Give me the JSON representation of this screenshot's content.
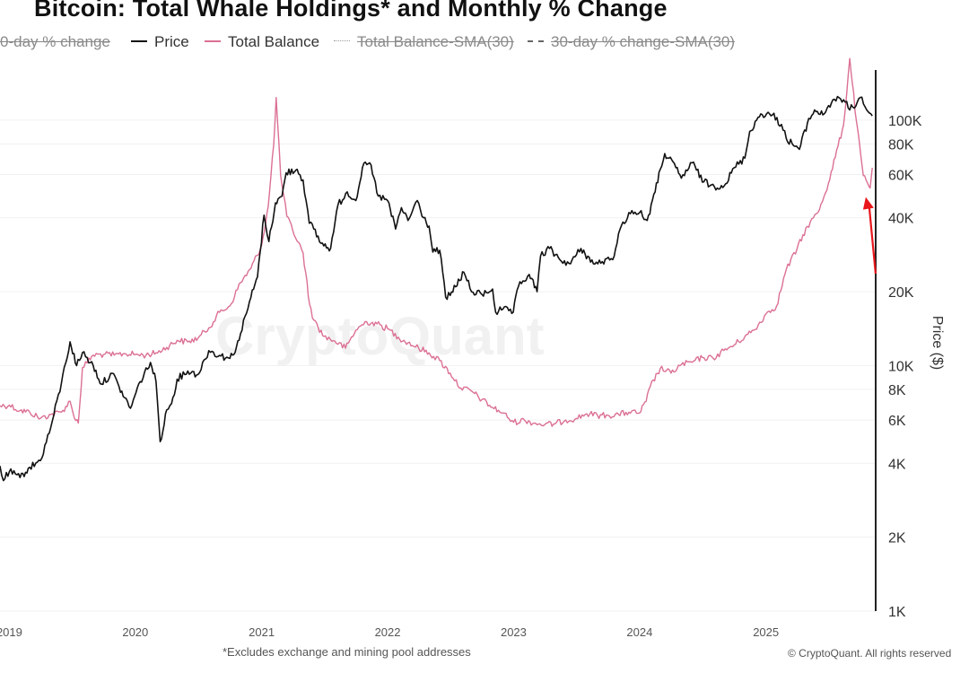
{
  "title": "Bitcoin: Total Whale Holdings* and Monthly % Change",
  "legend": [
    {
      "label": "0-day % change",
      "style": "none",
      "color": "#999999",
      "hidden": true
    },
    {
      "label": "Price",
      "style": "solid",
      "color": "#111111",
      "hidden": false
    },
    {
      "label": "Total Balance",
      "style": "solid",
      "color": "#db7093",
      "hidden": false
    },
    {
      "label": "Total Balance-SMA(30)",
      "style": "dotted",
      "color": "#999999",
      "hidden": true
    },
    {
      "label": "30-day % change-SMA(30)",
      "style": "dashed",
      "color": "#999999",
      "hidden": true
    }
  ],
  "watermark": "CryptoQuant",
  "footnote": "*Excludes exchange and mining pool addresses",
  "copyright": "© CryptoQuant. All rights reserved",
  "colors": {
    "price": "#111111",
    "total_balance": "#db7093",
    "arrow": "#e8161b",
    "axis": "#222222"
  },
  "chart_data": {
    "type": "line",
    "title": "Bitcoin: Total Whale Holdings* and Monthly % Change",
    "x_ticks": [
      "2019",
      "2020",
      "2021",
      "2022",
      "2023",
      "2024",
      "2025"
    ],
    "xlim": [
      "2018-12-05",
      "2025-11-15"
    ],
    "y_right": {
      "label": "Price ($)",
      "scale": "log",
      "ylim": [
        1000,
        160000
      ],
      "ticks": [
        1000,
        2000,
        4000,
        6000,
        8000,
        10000,
        20000,
        40000,
        60000,
        80000,
        100000
      ],
      "tick_labels": [
        "1K",
        "2K",
        "4K",
        "6K",
        "8K",
        "10K",
        "20K",
        "40K",
        "60K",
        "80K",
        "100K"
      ]
    },
    "series": [
      {
        "name": "Price",
        "axis": "right",
        "x": [
          "2018-12-05",
          "2018-12-15",
          "2019-01-01",
          "2019-02-01",
          "2019-03-01",
          "2019-04-01",
          "2019-05-01",
          "2019-06-01",
          "2019-06-26",
          "2019-07-15",
          "2019-08-01",
          "2019-09-01",
          "2019-09-25",
          "2019-10-26",
          "2019-11-15",
          "2019-12-01",
          "2019-12-18",
          "2020-01-15",
          "2020-02-14",
          "2020-03-01",
          "2020-03-13",
          "2020-04-01",
          "2020-04-15",
          "2020-05-01",
          "2020-06-01",
          "2020-07-01",
          "2020-08-01",
          "2020-09-01",
          "2020-10-01",
          "2020-10-20",
          "2020-11-01",
          "2020-12-01",
          "2020-12-20",
          "2021-01-08",
          "2021-01-22",
          "2021-02-10",
          "2021-03-01",
          "2021-03-13",
          "2021-04-14",
          "2021-05-01",
          "2021-05-19",
          "2021-06-01",
          "2021-06-22",
          "2021-07-20",
          "2021-08-10",
          "2021-09-06",
          "2021-10-01",
          "2021-10-20",
          "2021-11-10",
          "2021-12-05",
          "2022-01-01",
          "2022-01-24",
          "2022-02-10",
          "2022-03-01",
          "2022-03-28",
          "2022-04-15",
          "2022-05-01",
          "2022-05-12",
          "2022-06-01",
          "2022-06-18",
          "2022-07-01",
          "2022-08-10",
          "2022-09-01",
          "2022-10-01",
          "2022-11-01",
          "2022-11-10",
          "2022-12-01",
          "2022-12-31",
          "2023-01-15",
          "2023-02-15",
          "2023-03-10",
          "2023-03-20",
          "2023-04-15",
          "2023-05-15",
          "2023-06-15",
          "2023-07-15",
          "2023-08-20",
          "2023-09-15",
          "2023-10-15",
          "2023-11-01",
          "2023-12-01",
          "2024-01-01",
          "2024-01-23",
          "2024-02-15",
          "2024-03-01",
          "2024-03-14",
          "2024-04-15",
          "2024-05-01",
          "2024-06-01",
          "2024-07-05",
          "2024-08-05",
          "2024-09-06",
          "2024-10-01",
          "2024-11-01",
          "2024-11-15",
          "2024-12-17",
          "2025-01-20",
          "2025-02-15",
          "2025-03-01",
          "2025-04-08",
          "2025-05-01",
          "2025-05-22",
          "2025-06-15",
          "2025-07-14",
          "2025-08-14",
          "2025-09-01",
          "2025-10-06",
          "2025-10-20",
          "2025-11-05"
        ],
        "y": [
          3900,
          3400,
          3700,
          3500,
          3850,
          4100,
          5600,
          8500,
          12500,
          10000,
          11300,
          10000,
          8400,
          9300,
          8200,
          7400,
          6700,
          8600,
          10300,
          8600,
          4900,
          6600,
          7000,
          8800,
          9500,
          9200,
          11500,
          11000,
          10700,
          11900,
          13500,
          19000,
          23000,
          41000,
          32000,
          46000,
          49000,
          61000,
          63000,
          57000,
          38000,
          36000,
          31500,
          30000,
          45000,
          51000,
          47000,
          64000,
          67000,
          49000,
          47000,
          36000,
          44000,
          39000,
          47000,
          40000,
          37000,
          29000,
          29500,
          19000,
          19300,
          24000,
          20000,
          19500,
          20500,
          16500,
          17000,
          16500,
          21000,
          23500,
          20000,
          28000,
          30000,
          27000,
          26000,
          30000,
          26000,
          26500,
          27000,
          34500,
          42000,
          42000,
          39000,
          51000,
          63000,
          73000,
          64000,
          58000,
          67000,
          56000,
          53500,
          55000,
          64000,
          70000,
          90000,
          106000,
          105000,
          96000,
          84000,
          76000,
          97000,
          110000,
          105000,
          121000,
          121000,
          110000,
          124000,
          110000,
          104000
        ]
      },
      {
        "name": "Total Balance",
        "axis": "left",
        "unit": "relative (no left-axis labels shown)",
        "x": [
          "2018-12-05",
          "2019-01-01",
          "2019-02-01",
          "2019-03-01",
          "2019-04-01",
          "2019-05-01",
          "2019-06-01",
          "2019-06-26",
          "2019-07-05",
          "2019-07-20",
          "2019-08-01",
          "2019-09-01",
          "2019-10-01",
          "2019-11-01",
          "2019-12-01",
          "2020-01-01",
          "2020-02-01",
          "2020-03-01",
          "2020-04-01",
          "2020-05-01",
          "2020-06-01",
          "2020-07-01",
          "2020-08-01",
          "2020-09-01",
          "2020-10-01",
          "2020-11-01",
          "2020-12-01",
          "2021-01-01",
          "2021-01-20",
          "2021-02-05",
          "2021-02-12",
          "2021-02-25",
          "2021-03-15",
          "2021-04-01",
          "2021-05-01",
          "2021-05-20",
          "2021-06-01",
          "2021-07-01",
          "2021-08-01",
          "2021-09-01",
          "2021-10-01",
          "2021-11-01",
          "2021-12-01",
          "2022-01-01",
          "2022-02-01",
          "2022-03-01",
          "2022-04-01",
          "2022-05-01",
          "2022-06-01",
          "2022-07-01",
          "2022-08-01",
          "2022-09-01",
          "2022-10-01",
          "2022-11-01",
          "2022-12-01",
          "2023-01-01",
          "2023-02-01",
          "2023-03-01",
          "2023-04-01",
          "2023-05-01",
          "2023-06-01",
          "2023-07-01",
          "2023-08-01",
          "2023-09-01",
          "2023-10-01",
          "2023-11-01",
          "2023-12-01",
          "2024-01-01",
          "2024-01-20",
          "2024-02-01",
          "2024-03-01",
          "2024-04-01",
          "2024-05-01",
          "2024-06-01",
          "2024-07-01",
          "2024-08-01",
          "2024-09-01",
          "2024-10-01",
          "2024-11-01",
          "2024-12-01",
          "2025-01-01",
          "2025-02-01",
          "2025-03-01",
          "2025-04-01",
          "2025-05-01",
          "2025-06-01",
          "2025-07-01",
          "2025-08-14",
          "2025-09-01",
          "2025-09-20",
          "2025-10-10",
          "2025-10-30",
          "2025-11-05"
        ],
        "y": [
          8.0,
          8.1,
          7.4,
          7.2,
          6.4,
          6.9,
          7.2,
          8.6,
          7.0,
          5.8,
          12.9,
          14.5,
          14.6,
          14.5,
          14.7,
          14.6,
          14.5,
          14.8,
          15.5,
          16.4,
          16.2,
          16.7,
          18.0,
          20.0,
          20.8,
          23.8,
          25.6,
          28.6,
          33.5,
          41.5,
          47.5,
          37.5,
          32.3,
          30.5,
          27.6,
          21.0,
          19.0,
          16.9,
          16.3,
          15.4,
          17.7,
          18.8,
          18.5,
          17.9,
          16.8,
          16.1,
          15.4,
          14.8,
          13.8,
          12.2,
          10.3,
          9.9,
          8.8,
          7.8,
          7.1,
          5.9,
          6.2,
          5.8,
          5.6,
          5.7,
          6.2,
          6.4,
          7.0,
          6.8,
          6.8,
          6.9,
          7.2,
          7.1,
          8.6,
          10.5,
          12.8,
          12.2,
          13.3,
          13.6,
          14.2,
          14.1,
          15.1,
          15.8,
          16.9,
          17.8,
          19.8,
          20.8,
          25.5,
          28.1,
          31.0,
          32.8,
          36.5,
          44.0,
          52.5,
          44.5,
          37.5,
          35.9,
          38.5
        ]
      }
    ],
    "annotations": [
      {
        "type": "arrow",
        "color": "#e8161b",
        "direction": "up",
        "points_to": {
          "series": "Total Balance",
          "x": "2025-10-25"
        }
      }
    ]
  }
}
